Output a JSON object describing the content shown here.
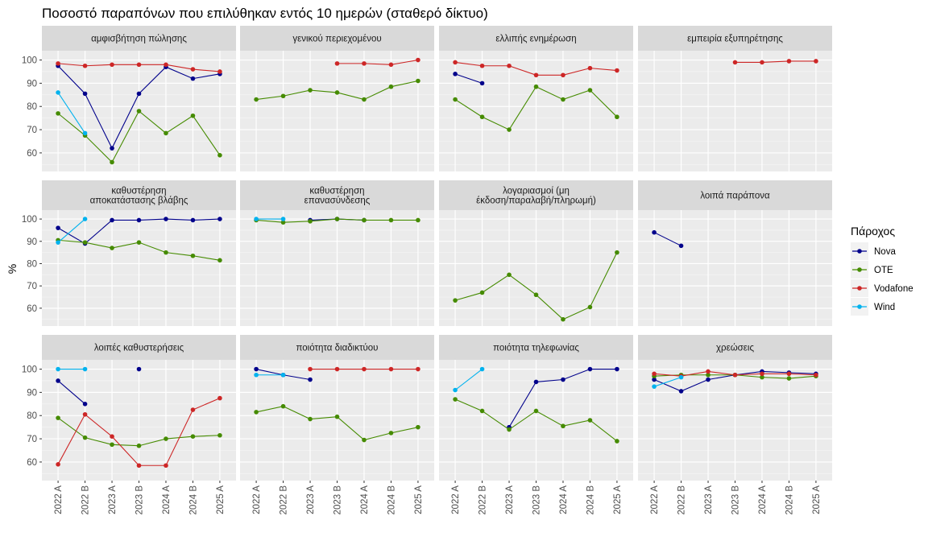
{
  "chart_data": {
    "type": "line",
    "title": "Ποσοστό παραπόνων που επιλύθηκαν εντός 10 ημερών (σταθερό δίκτυο)",
    "xlabel": "",
    "ylabel": "%",
    "ylim": [
      52,
      104
    ],
    "yticks": [
      60,
      70,
      80,
      90,
      100
    ],
    "x": [
      "2022 A",
      "2022 B",
      "2023 A",
      "2023 B",
      "2024 A",
      "2024 B",
      "2025 A"
    ],
    "legend": {
      "title": "Πάροχος",
      "position": "right",
      "entries": [
        "Nova",
        "OTE",
        "Vodafone",
        "Wind"
      ]
    },
    "colors": {
      "Nova": "#00008B",
      "OTE": "#458B00",
      "Vodafone": "#CD2626",
      "Wind": "#00B2EE"
    },
    "facets": [
      {
        "title": [
          "αμφισβήτηση πώλησης"
        ],
        "series": [
          {
            "name": "Nova",
            "values": [
              97.5,
              85.5,
              62,
              85.5,
              97,
              92,
              94
            ]
          },
          {
            "name": "OTE",
            "values": [
              77,
              67.5,
              56,
              78,
              68.5,
              76,
              59
            ]
          },
          {
            "name": "Vodafone",
            "values": [
              98.5,
              97.5,
              98,
              98,
              98,
              96,
              95
            ]
          },
          {
            "name": "Wind",
            "values": [
              86,
              68.5,
              null,
              null,
              null,
              null,
              null
            ]
          }
        ]
      },
      {
        "title": [
          "γενικού περιεχομένου"
        ],
        "series": [
          {
            "name": "OTE",
            "values": [
              83,
              84.5,
              87,
              86,
              83,
              88.5,
              91
            ]
          },
          {
            "name": "Vodafone",
            "values": [
              null,
              null,
              null,
              98.5,
              98.5,
              98,
              100
            ]
          }
        ]
      },
      {
        "title": [
          "ελλιπής ενημέρωση"
        ],
        "series": [
          {
            "name": "Nova",
            "values": [
              94,
              90,
              null,
              null,
              null,
              null,
              null
            ]
          },
          {
            "name": "OTE",
            "values": [
              83,
              75.5,
              70,
              88.5,
              83,
              87,
              75.5
            ]
          },
          {
            "name": "Vodafone",
            "values": [
              99,
              97.5,
              97.5,
              93.5,
              93.5,
              96.5,
              95.5
            ]
          }
        ]
      },
      {
        "title": [
          "εμπειρία εξυπηρέτησης"
        ],
        "series": [
          {
            "name": "Vodafone",
            "values": [
              null,
              null,
              null,
              99,
              99,
              99.5,
              99.5
            ]
          }
        ]
      },
      {
        "title": [
          "καθυστέρηση",
          "αποκατάστασης βλάβης"
        ],
        "series": [
          {
            "name": "Nova",
            "values": [
              96,
              89,
              99.5,
              99.5,
              100,
              99.5,
              100
            ]
          },
          {
            "name": "OTE",
            "values": [
              90.5,
              89.5,
              87,
              89.5,
              85,
              83.5,
              81.5
            ]
          },
          {
            "name": "Wind",
            "values": [
              89.5,
              100,
              null,
              null,
              null,
              null,
              null
            ]
          }
        ]
      },
      {
        "title": [
          "καθυστέρηση",
          "επανασύνδεσης"
        ],
        "series": [
          {
            "name": "Nova",
            "values": [
              null,
              null,
              99.5,
              100,
              99.5,
              null,
              null
            ]
          },
          {
            "name": "OTE",
            "values": [
              99.5,
              98.5,
              99,
              100,
              99.5,
              99.5,
              99.5
            ]
          },
          {
            "name": "Wind",
            "values": [
              100,
              100,
              null,
              null,
              null,
              null,
              null
            ]
          }
        ]
      },
      {
        "title": [
          "λογαριασμοί (μη",
          "έκδοση/παραλαβή/πληρωμή)"
        ],
        "series": [
          {
            "name": "OTE",
            "values": [
              63.5,
              67,
              75,
              66,
              55,
              60.5,
              85
            ]
          }
        ]
      },
      {
        "title": [
          "λοιπά παράπονα"
        ],
        "series": [
          {
            "name": "Nova",
            "values": [
              94,
              88,
              null,
              null,
              null,
              null,
              null
            ]
          }
        ]
      },
      {
        "title": [
          "λοιπές καθυστερήσεις"
        ],
        "series": [
          {
            "name": "Nova",
            "values": [
              95,
              85,
              null,
              100,
              null,
              null,
              null
            ]
          },
          {
            "name": "OTE",
            "values": [
              79,
              70.5,
              67.5,
              67,
              70,
              71,
              71.5
            ]
          },
          {
            "name": "Vodafone",
            "values": [
              59,
              80.5,
              71,
              58.5,
              58.5,
              82.5,
              87.5
            ]
          },
          {
            "name": "Wind",
            "values": [
              100,
              100,
              null,
              null,
              null,
              null,
              null
            ]
          }
        ]
      },
      {
        "title": [
          "ποιότητα διαδικτύου"
        ],
        "series": [
          {
            "name": "Nova",
            "values": [
              100,
              97.5,
              95.5,
              null,
              null,
              null,
              null
            ]
          },
          {
            "name": "OTE",
            "values": [
              81.5,
              84,
              78.5,
              79.5,
              69.5,
              72.5,
              75
            ]
          },
          {
            "name": "Vodafone",
            "values": [
              null,
              null,
              100,
              100,
              100,
              100,
              100
            ]
          },
          {
            "name": "Wind",
            "values": [
              97.5,
              97.5,
              null,
              null,
              null,
              null,
              null
            ]
          }
        ]
      },
      {
        "title": [
          "ποιότητα τηλεφωνίας"
        ],
        "series": [
          {
            "name": "Nova",
            "values": [
              null,
              null,
              75,
              94.5,
              95.5,
              100,
              100
            ]
          },
          {
            "name": "OTE",
            "values": [
              87,
              82,
              74,
              82,
              75.5,
              78,
              69
            ]
          },
          {
            "name": "Wind",
            "values": [
              91,
              100,
              null,
              null,
              null,
              null,
              null
            ]
          }
        ]
      },
      {
        "title": [
          "χρεώσεις"
        ],
        "series": [
          {
            "name": "Nova",
            "values": [
              95.5,
              90.5,
              95.5,
              97.5,
              99,
              98.5,
              98
            ]
          },
          {
            "name": "OTE",
            "values": [
              97,
              97.5,
              97.5,
              97.5,
              96.5,
              96,
              97
            ]
          },
          {
            "name": "Vodafone",
            "values": [
              98,
              97,
              99,
              97.5,
              98,
              98,
              97.5
            ]
          },
          {
            "name": "Wind",
            "values": [
              92.5,
              96.5,
              null,
              null,
              null,
              null,
              null
            ]
          }
        ]
      }
    ]
  }
}
